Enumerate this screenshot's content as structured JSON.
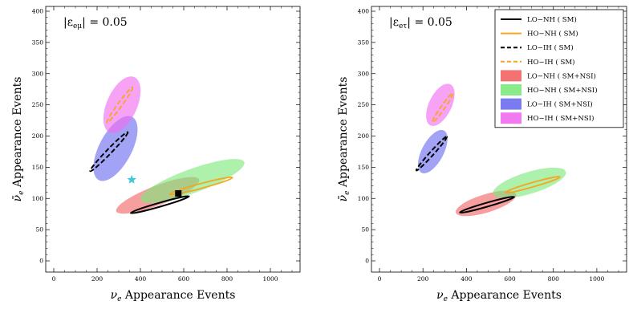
{
  "chart_data": [
    {
      "type": "scatter",
      "annotation": {
        "prefix": "|ε",
        "sub": "eμ",
        "suffix": "| = 0.05"
      },
      "xlabel": {
        "sym": "ν",
        "sub": "e",
        "text": "Appearance    Events"
      },
      "ylabel": {
        "sym": "ν̄",
        "sub": "e",
        "text": "Appearance    Events"
      },
      "xlim": [
        0,
        1100
      ],
      "ylim": [
        0,
        400
      ],
      "xticks": [
        0,
        200,
        400,
        600,
        800,
        1000
      ],
      "yticks": [
        0,
        50,
        100,
        150,
        200,
        250,
        300,
        350,
        400
      ],
      "regions": [
        {
          "name": "LO−NH ( SM+NSI)",
          "color": "#f26464",
          "cx": 480,
          "cy": 105,
          "rx": 205,
          "ry": 45,
          "angle": -21
        },
        {
          "name": "HO−NH ( SM+NSI)",
          "color": "#7be87b",
          "cx": 640,
          "cy": 128,
          "rx": 255,
          "ry": 55,
          "angle": -20
        },
        {
          "name": "LO−IH ( SM+NSI)",
          "color": "#6b6bf0",
          "cx": 285,
          "cy": 180,
          "rx": 165,
          "ry": 75,
          "angle": -62
        },
        {
          "name": "HO−IH ( SM+NSI)",
          "color": "#f06bf0",
          "cx": 315,
          "cy": 250,
          "rx": 140,
          "ry": 70,
          "angle": -66
        }
      ],
      "ellipses": [
        {
          "name": "LO−NH ( SM)",
          "color": "#000000",
          "dash": false,
          "cx": 490,
          "cy": 90,
          "rx": 140,
          "ry": 9,
          "angle": -16
        },
        {
          "name": "HO−NH ( SM)",
          "color": "#f5a623",
          "dash": false,
          "cx": 680,
          "cy": 120,
          "rx": 150,
          "ry": 11,
          "angle": -15
        },
        {
          "name": "LO−IH ( SM)",
          "color": "#000000",
          "dash": true,
          "cx": 255,
          "cy": 175,
          "rx": 125,
          "ry": 11,
          "angle": -46
        },
        {
          "name": "HO−IH ( SM)",
          "color": "#f5a623",
          "dash": true,
          "cx": 305,
          "cy": 250,
          "rx": 100,
          "ry": 10,
          "angle": -54
        }
      ],
      "markers": [
        {
          "shape": "star",
          "x": 360,
          "y": 130,
          "color": "#40c8e0"
        },
        {
          "shape": "square",
          "x": 575,
          "y": 108,
          "color": "#000000"
        }
      ]
    },
    {
      "type": "scatter",
      "annotation": {
        "prefix": "|ε",
        "sub": "eτ",
        "suffix": "| = 0.05"
      },
      "xlabel": {
        "sym": "ν",
        "sub": "e",
        "text": "Appearance    Events"
      },
      "ylabel": {
        "sym": "ν̄",
        "sub": "e",
        "text": "Appearance    Events"
      },
      "xlim": [
        0,
        1100
      ],
      "ylim": [
        0,
        400
      ],
      "xticks": [
        0,
        200,
        400,
        600,
        800,
        1000
      ],
      "yticks": [
        0,
        50,
        100,
        150,
        200,
        250,
        300,
        350,
        400
      ],
      "regions": [
        {
          "name": "LO−NH ( SM+NSI)",
          "color": "#f26464",
          "cx": 490,
          "cy": 92,
          "rx": 145,
          "ry": 42,
          "angle": -17
        },
        {
          "name": "HO−NH ( SM+NSI)",
          "color": "#7be87b",
          "cx": 690,
          "cy": 125,
          "rx": 175,
          "ry": 50,
          "angle": -17
        },
        {
          "name": "LO−IH ( SM+NSI)",
          "color": "#6b6bf0",
          "cx": 245,
          "cy": 175,
          "rx": 110,
          "ry": 50,
          "angle": -62
        },
        {
          "name": "HO−IH ( SM+NSI)",
          "color": "#f06bf0",
          "cx": 280,
          "cy": 250,
          "rx": 105,
          "ry": 52,
          "angle": -64
        }
      ],
      "ellipses": [
        {
          "name": "LO−NH ( SM)",
          "color": "#000000",
          "dash": false,
          "cx": 495,
          "cy": 90,
          "rx": 130,
          "ry": 9,
          "angle": -16
        },
        {
          "name": "HO−NH ( SM)",
          "color": "#f5a623",
          "dash": false,
          "cx": 705,
          "cy": 122,
          "rx": 130,
          "ry": 10,
          "angle": -16
        },
        {
          "name": "LO−IH ( SM)",
          "color": "#000000",
          "dash": true,
          "cx": 240,
          "cy": 172,
          "rx": 105,
          "ry": 9,
          "angle": -48
        },
        {
          "name": "HO−IH ( SM)",
          "color": "#f5a623",
          "dash": true,
          "cx": 290,
          "cy": 245,
          "rx": 80,
          "ry": 9,
          "angle": -55
        }
      ],
      "markers": [],
      "legend": {
        "placement": "top-right",
        "entries": [
          {
            "label": "LO−NH ( SM)",
            "kind": "line",
            "color": "#000000",
            "dash": false
          },
          {
            "label": "HO−NH ( SM)",
            "kind": "line",
            "color": "#f5a623",
            "dash": false
          },
          {
            "label": "LO−IH ( SM)",
            "kind": "line",
            "color": "#000000",
            "dash": true
          },
          {
            "label": "HO−IH ( SM)",
            "kind": "line",
            "color": "#f5a623",
            "dash": true
          },
          {
            "label": "LO−NH ( SM+NSI)",
            "kind": "patch",
            "color": "#f26464"
          },
          {
            "label": "HO−NH ( SM+NSI)",
            "kind": "patch",
            "color": "#7be87b"
          },
          {
            "label": "LO−IH ( SM+NSI)",
            "kind": "patch",
            "color": "#6b6bf0"
          },
          {
            "label": "HO−IH ( SM+NSI)",
            "kind": "patch",
            "color": "#f06bf0"
          }
        ]
      }
    }
  ]
}
